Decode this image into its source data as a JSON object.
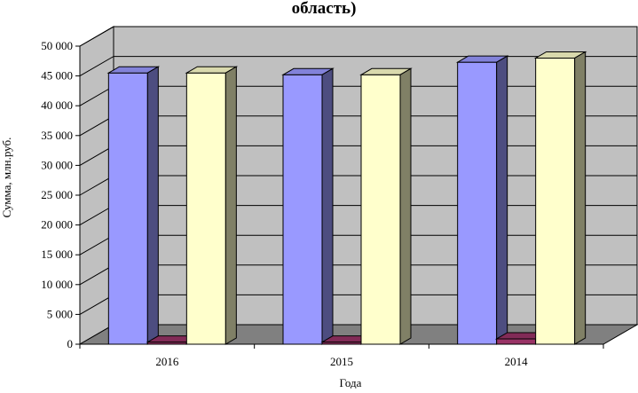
{
  "chart_data": {
    "type": "bar",
    "title": "область)",
    "xlabel": "Года",
    "ylabel": "Сумма, млн.руб.",
    "categories": [
      "2016",
      "2015",
      "2014"
    ],
    "series": [
      {
        "values": [
          45500,
          45200,
          47300
        ],
        "color": "#9999ff"
      },
      {
        "values": [
          350,
          350,
          900
        ],
        "color": "#993366"
      },
      {
        "values": [
          45500,
          45200,
          48000
        ],
        "color": "#ffffcc"
      }
    ],
    "ylim": [
      0,
      50000
    ],
    "yticks": [
      "0",
      "5 000",
      "10 000",
      "15 000",
      "20 000",
      "25 000",
      "30 000",
      "35 000",
      "40 000",
      "45 000",
      "50 000"
    ],
    "grid": true,
    "wall_color": "#c0c0c0",
    "floor_color": "#808080"
  }
}
